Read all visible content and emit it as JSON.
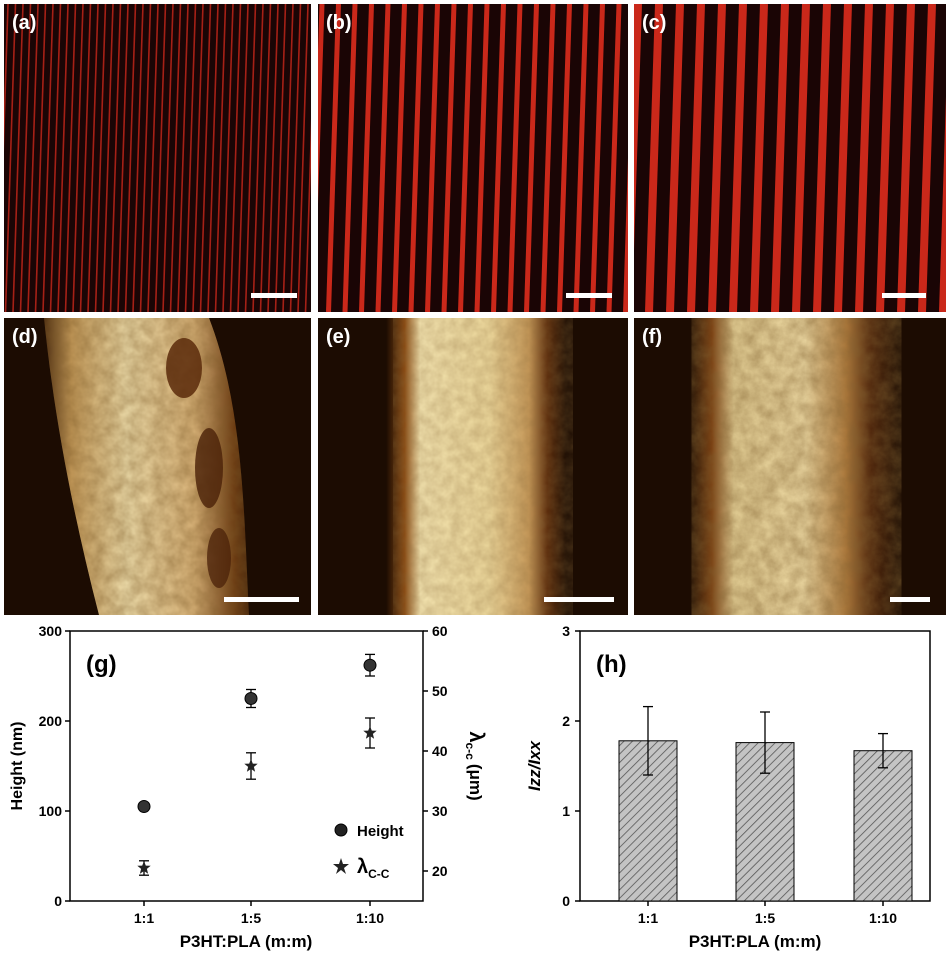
{
  "panels": {
    "a": {
      "label": "(a)"
    },
    "b": {
      "label": "(b)"
    },
    "c": {
      "label": "(c)"
    },
    "d": {
      "label": "(d)"
    },
    "e": {
      "label": "(e)"
    },
    "f": {
      "label": "(f)"
    }
  },
  "colors": {
    "fluorescence_background": "#1a0505",
    "fluorescence_stripe": "#d42a1c",
    "afm_dark": "#1c0c02",
    "afm_mid": "#8a4a12",
    "afm_bright": "#f2e2a8",
    "bar_fill": "#b7b7b7"
  },
  "chart_data": [
    {
      "type": "scatter",
      "panel_label": "(g)",
      "categories": [
        "1:1",
        "1:5",
        "1:10"
      ],
      "xlabel": "P3HT:PLA (m:m)",
      "ylabel": "Height (nm)",
      "ylabel_right": "λc-c (μm)",
      "ylim": [
        0,
        300
      ],
      "yticks": [
        "0",
        "100",
        "200",
        "300"
      ],
      "ylim_right": [
        15,
        60
      ],
      "yticks_right": [
        "20",
        "30",
        "40",
        "50",
        "60"
      ],
      "series": [
        {
          "name": "Height",
          "axis": "left",
          "marker": "circle",
          "values": [
            105,
            225,
            262
          ],
          "errors": [
            3,
            10,
            12
          ]
        },
        {
          "name": "λc-c",
          "axis": "right",
          "marker": "star",
          "values": [
            20.5,
            37.5,
            43
          ],
          "errors": [
            1.2,
            2.2,
            2.5
          ]
        }
      ],
      "legend": {
        "height_label": "Height",
        "lambda_symbol": "λ",
        "lambda_sub": "C-C"
      },
      "right_axis_title": {
        "symbol": "λ",
        "sub": "c-c",
        "unit": "(μm)"
      }
    },
    {
      "type": "bar",
      "panel_label": "(h)",
      "categories": [
        "1:1",
        "1:5",
        "1:10"
      ],
      "values": [
        1.78,
        1.76,
        1.67
      ],
      "errors": [
        0.38,
        0.34,
        0.19
      ],
      "xlabel": "P3HT:PLA (m:m)",
      "ylabel": "Izz/Ixx",
      "ylim": [
        0,
        3
      ],
      "yticks": [
        "0",
        "1",
        "2",
        "3"
      ]
    }
  ]
}
